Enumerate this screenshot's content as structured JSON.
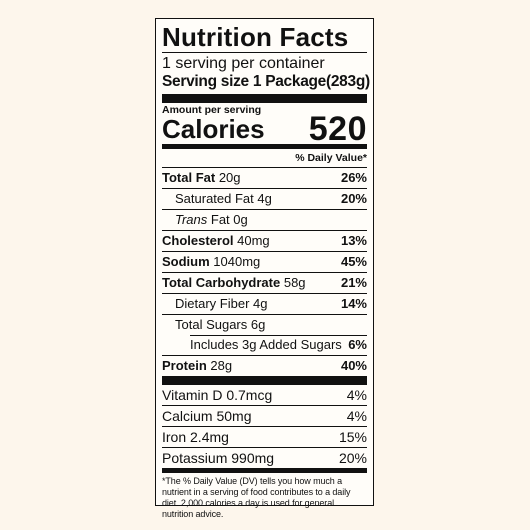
{
  "title": "Nutrition Facts",
  "servings": "1 serving per container",
  "serving_size": "Serving size 1 Package(283g)",
  "amount_per_serving": "Amount per serving",
  "calories_label": "Calories",
  "calories_value": "520",
  "daily_value_header": "% Daily Value*",
  "nutrients": {
    "total_fat": {
      "label": "Total Fat",
      "amount": "20g",
      "pct": "26%"
    },
    "saturated_fat": {
      "label": "Saturated Fat 4g",
      "pct": "20%"
    },
    "trans_fat": {
      "label_italic": "Trans",
      "label": "Fat 0g"
    },
    "cholesterol": {
      "label": "Cholesterol",
      "amount": "40mg",
      "pct": "13%"
    },
    "sodium": {
      "label": "Sodium",
      "amount": "1040mg",
      "pct": "45%"
    },
    "total_carbohydrate": {
      "label": "Total Carbohydrate",
      "amount": "58g",
      "pct": "21%"
    },
    "dietary_fiber": {
      "label": "Dietary Fiber 4g",
      "pct": "14%"
    },
    "total_sugars": {
      "label": "Total Sugars 6g"
    },
    "added_sugars": {
      "label": "Includes 3g Added Sugars",
      "pct": "6%"
    },
    "protein": {
      "label": "Protein",
      "amount": "28g",
      "pct": "40%"
    }
  },
  "vitamins": [
    {
      "label": "Vitamin D 0.7mcg",
      "pct": "4%"
    },
    {
      "label": "Calcium 50mg",
      "pct": "4%"
    },
    {
      "label": "Iron 2.4mg",
      "pct": "15%"
    },
    {
      "label": "Potassium 990mg",
      "pct": "20%"
    }
  ],
  "footnote": "*The % Daily Value (DV) tells you how much a nutrient in a serving of food contributes to a daily diet. 2,000 calories a day is used for general nutrition advice."
}
